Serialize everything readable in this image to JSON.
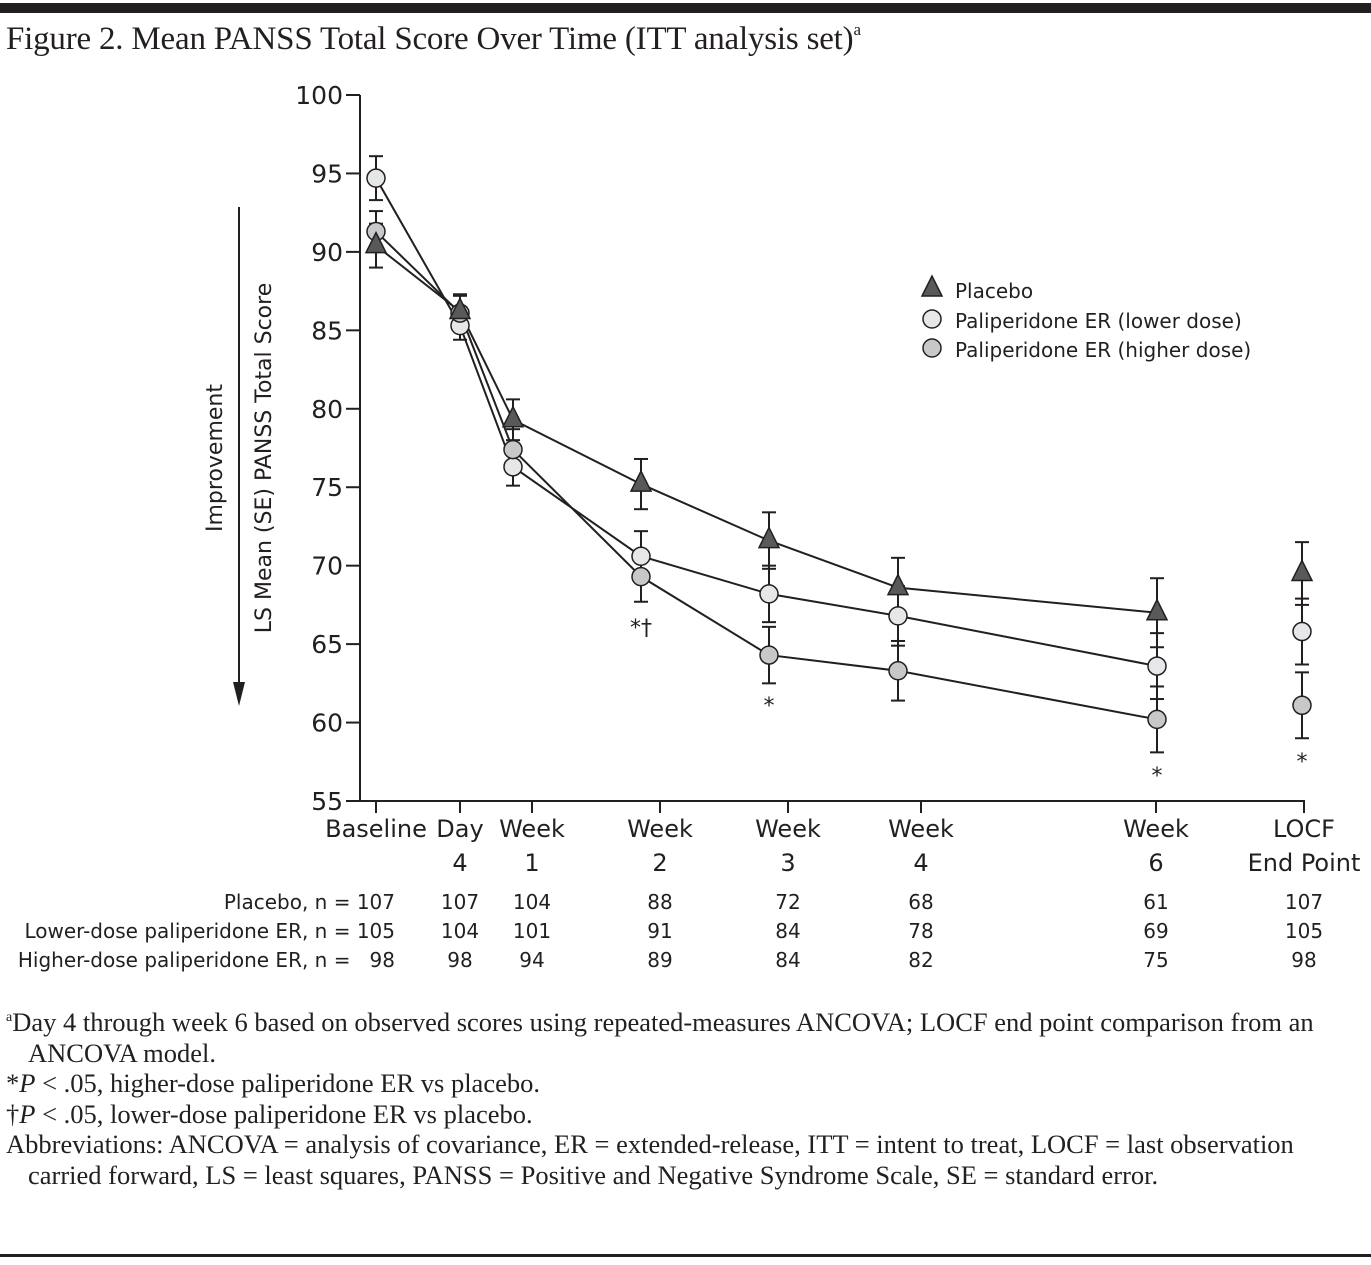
{
  "figure": {
    "title": "Figure 2. Mean PANSS Total Score Over Time (ITT analysis set)",
    "title_superscript": "a"
  },
  "chart_data": {
    "type": "line",
    "title": "Mean PANSS Total Score Over Time (ITT analysis set)",
    "xlabel": "",
    "ylabel": "LS Mean (SE) PANSS Total Score",
    "y_arrow_label": "Improvement",
    "y_arrow_direction": "down",
    "ylim": [
      55,
      100
    ],
    "yticks": [
      55,
      60,
      65,
      70,
      75,
      80,
      85,
      90,
      95,
      100
    ],
    "grid": false,
    "legend_position": "top-right",
    "categories": [
      "Baseline",
      "Day 4",
      "Week 1",
      "Week 2",
      "Week 3",
      "Week 4",
      "Week 6",
      "LOCF End Point"
    ],
    "category_labels": [
      [
        "Baseline",
        ""
      ],
      [
        "Day",
        "4"
      ],
      [
        "Week",
        "1"
      ],
      [
        "Week",
        "2"
      ],
      [
        "Week",
        "3"
      ],
      [
        "Week",
        "4"
      ],
      [
        "Week",
        "6"
      ],
      [
        "LOCF",
        "End Point"
      ]
    ],
    "x_days": [
      0,
      4,
      7,
      14,
      21,
      28,
      42,
      49
    ],
    "connected_points": 7,
    "series": [
      {
        "name": "Placebo",
        "marker": "triangle",
        "fill": "#58595b",
        "values": [
          90.4,
          86.2,
          79.3,
          75.2,
          71.6,
          68.6,
          67.0,
          69.5
        ],
        "se": [
          1.4,
          1.1,
          1.3,
          1.6,
          1.8,
          1.9,
          2.2,
          2.0
        ]
      },
      {
        "name": "Paliperidone ER (lower dose)",
        "marker": "circle",
        "fill": "#e6e7e8",
        "values": [
          94.7,
          85.3,
          76.3,
          70.6,
          68.2,
          66.8,
          63.6,
          65.8
        ],
        "se": [
          1.4,
          0.9,
          1.2,
          1.6,
          1.8,
          1.9,
          2.1,
          2.1
        ]
      },
      {
        "name": "Paliperidone ER (higher dose)",
        "marker": "circle",
        "fill": "#c7c8ca",
        "values": [
          91.3,
          86.1,
          77.4,
          69.3,
          64.3,
          63.3,
          60.2,
          61.1
        ],
        "se": [
          1.3,
          1.1,
          1.3,
          1.6,
          1.8,
          1.9,
          2.1,
          2.1
        ]
      }
    ],
    "annotations": [
      {
        "category": "Week 2",
        "text": "*†"
      },
      {
        "category": "Week 3",
        "text": "*"
      },
      {
        "category": "Week 6",
        "text": "*"
      },
      {
        "category": "LOCF End Point",
        "text": "*"
      }
    ],
    "n_table": {
      "rows": [
        {
          "label": "Placebo, n = 107",
          "values": [
            "107",
            "104",
            "88",
            "72",
            "68",
            "61",
            "107"
          ]
        },
        {
          "label": "Lower-dose paliperidone ER, n = 105",
          "values": [
            "104",
            "101",
            "91",
            "84",
            "78",
            "69",
            "105"
          ]
        },
        {
          "label": "Higher-dose paliperidone ER, n =   98",
          "values": [
            "98",
            "94",
            "89",
            "84",
            "82",
            "75",
            "98"
          ]
        }
      ]
    }
  },
  "footnotes": {
    "a_marker": "a",
    "a_text": "Day 4 through week 6 based on observed scores using repeated-measures ANCOVA; LOCF end point comparison from an ANCOVA model.",
    "star_marker": "*",
    "star_p": "P",
    "star_text": " < .05, higher-dose paliperidone ER vs placebo.",
    "dagger_marker": "†",
    "dagger_p": "P",
    "dagger_text": " < .05, lower-dose paliperidone ER vs placebo.",
    "abbreviations": "Abbreviations: ANCOVA = analysis of covariance, ER = extended-release, ITT = intent to treat, LOCF = last observation carried forward, LS = least squares, PANSS = Positive and Negative Syndrome Scale, SE = standard error."
  },
  "colors": {
    "ink": "#231f20",
    "placebo": "#58595b",
    "lower_dose": "#e6e7e8",
    "higher_dose": "#c7c8ca"
  }
}
